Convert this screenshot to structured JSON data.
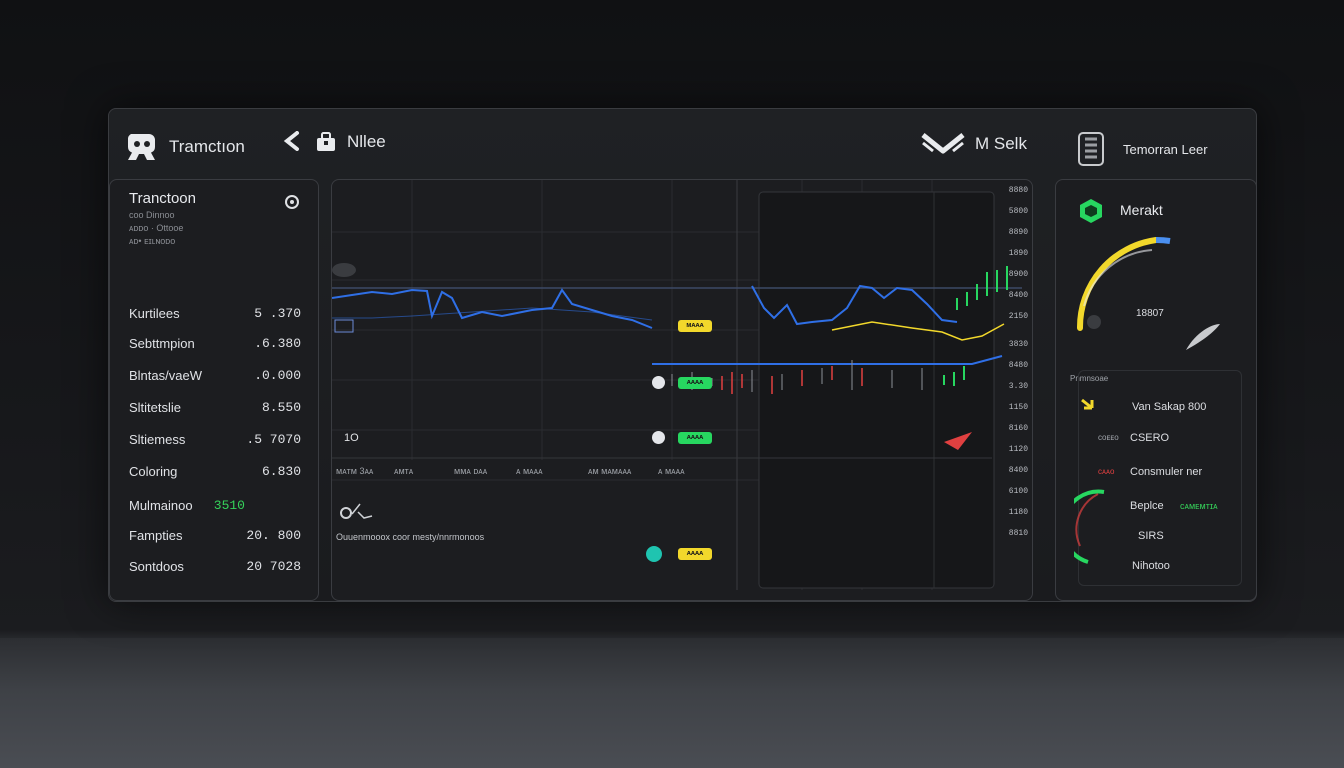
{
  "header": {
    "app_title": "Tramctıon",
    "nav_label": "Nllee",
    "account_label": "M Selk",
    "account_sub": "Temorran Leer"
  },
  "left_panel": {
    "title": "Tranctoon",
    "subtitles": [
      "ᴄᴏᴏ Dinnoo",
      "ᴀᴅᴅᴏ · Ottooe",
      "ᴀᴅ• ᴇɪʟɴᴏᴅᴏ"
    ],
    "rows": [
      {
        "label": "Kurtilees",
        "value": "5 .370",
        "highlight": false
      },
      {
        "label": "Sebttmpion",
        "value": ".6.380",
        "highlight": false
      },
      {
        "label": "Blntas/vaeW",
        "value": ".0.000",
        "highlight": false
      },
      {
        "label": "Sltitetslie",
        "value": "8.550",
        "highlight": false
      },
      {
        "label": "Sltiemess",
        "value": ".5 7070",
        "highlight": false
      },
      {
        "label": "Coloring",
        "value": "6.830",
        "highlight": false
      },
      {
        "label": "Mulmainoo",
        "value": "3510",
        "highlight": true
      },
      {
        "label": "Fampties",
        "value": "20. 800",
        "highlight": false
      },
      {
        "label": "Sontdoos",
        "value": "20 7028",
        "highlight": false
      }
    ]
  },
  "chart": {
    "y_axis_labels": [
      "8880",
      "5800",
      "8890",
      "1890",
      "8900",
      "8400",
      "2150",
      "3830",
      "8480",
      "3.30",
      "1150",
      "8160",
      "1120",
      "8400",
      "6100",
      "1180",
      "8810"
    ],
    "tags": [
      {
        "text": "ᴍᴀᴀᴀ",
        "color": "#f2d82b"
      },
      {
        "text": "ᴀᴀᴀᴀ",
        "color": "#27d760"
      },
      {
        "text": "ᴀᴀᴀᴀ",
        "color": "#27d760"
      },
      {
        "text": "ᴀᴀᴀᴀ",
        "color": "#f2d82b"
      }
    ],
    "left_marker": "1O",
    "legend_items": [
      "ᴍᴀᴛᴍ 3ᴀᴀ",
      "ᴀᴍᴛᴀ",
      "ᴍᴍᴀ ᴅᴀᴀ",
      "ᴀ ᴍᴀᴀᴀ",
      "ᴀᴍ ᴍᴀᴍᴀᴀᴀ",
      "ᴀ ᴍᴀᴀᴀ"
    ],
    "footer_text": "Ouuenmooox  coor mesty/nnrmonoos",
    "colors": {
      "blue": "#2f6fe6",
      "yellow": "#f2d82b",
      "green": "#27d760",
      "red": "#e04040"
    }
  },
  "right_panel": {
    "title": "Merakt",
    "gauge_value": "18807",
    "section_label": "Pnmnsoae",
    "items": [
      {
        "code": "",
        "label": "Van Sakap 800"
      },
      {
        "code": "ᴄᴏᴇᴇᴏ",
        "label": "CSERO"
      },
      {
        "code": "ᴄᴀᴀᴏ",
        "label": "Consmuler ner"
      },
      {
        "code": "",
        "label": "Beplce"
      },
      {
        "code": "",
        "label": "SIRS"
      },
      {
        "code": "",
        "label": "Nihotoo"
      }
    ],
    "green_note": "ᴄᴀᴍᴇᴍᴛɪᴀ"
  }
}
